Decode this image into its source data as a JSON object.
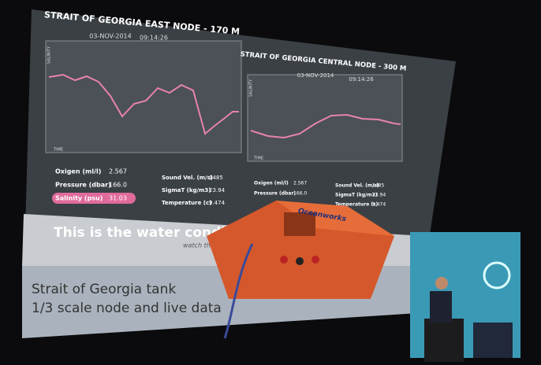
{
  "screen": {
    "left_panel": {
      "title": "STRAIT OF GEORGIA EAST NODE - 170 M",
      "date": "03-NOV-2014",
      "time": "09:14:26",
      "y_axis_label": "SALINITY",
      "x_axis_label": "TIME",
      "readings": [
        {
          "label": "Oxigen (ml/l)",
          "value": "2.567"
        },
        {
          "label": "Pressure (dbar)",
          "value": "166.0"
        },
        {
          "label": "Salinity (psu)",
          "value": "31.03"
        },
        {
          "label": "Sound Vel. (m/s)",
          "value": "1485"
        },
        {
          "label": "SigmaT (kg/m3)",
          "value": "23.94"
        },
        {
          "label": "Temperature (c)",
          "value": "9.474"
        }
      ]
    },
    "right_panel": {
      "title": "STRAIT OF GEORGIA CENTRAL NODE - 300 M",
      "date": "03-NOV-2014",
      "time": "09:14:26",
      "y_axis_label": "SALINITY",
      "x_axis_label": "TIME",
      "readings": [
        {
          "label": "Oxigen (ml/l)",
          "value": "2.567"
        },
        {
          "label": "Pressure (dbar)",
          "value": "166.0"
        },
        {
          "label": "Sound Vel. (m/s)",
          "value": "1485"
        },
        {
          "label": "SigmaT (kg/m3)",
          "value": "23.94"
        },
        {
          "label": "Temperature (c)",
          "value": "9.474"
        }
      ]
    },
    "banner": {
      "headline": "This is the water condition",
      "subline": "watch this liv"
    },
    "caption": {
      "line1": "Strait of Georgia tank",
      "line2": "1/3 scale node and live data"
    }
  },
  "device": {
    "logo": "Oceanworks"
  }
}
